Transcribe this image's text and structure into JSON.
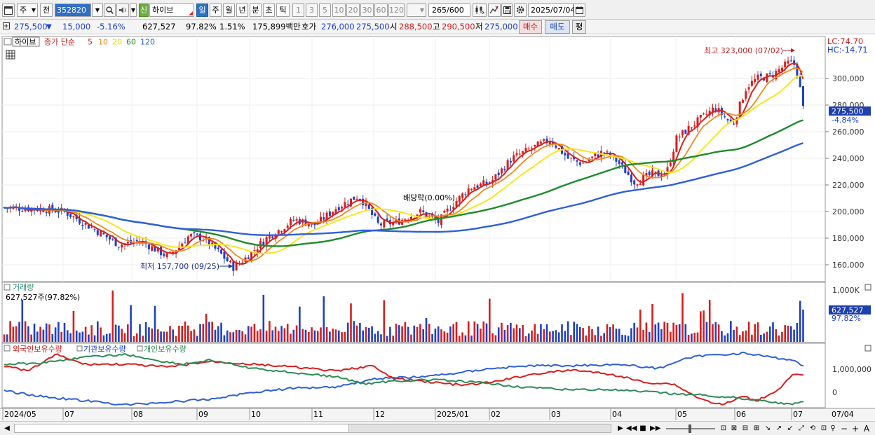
{
  "toolbar": {
    "market_label": "주",
    "prev_label": "전",
    "stock_code": "352820",
    "stock_name": "하이브",
    "new_badge": "신",
    "periods": [
      "일",
      "주",
      "월",
      "년",
      "분",
      "초",
      "틱"
    ],
    "active_period": "일",
    "intervals": [
      "1",
      "3",
      "5",
      "10",
      "20",
      "30",
      "60",
      "120"
    ],
    "bar_count": "265",
    "bar_total": "/600",
    "date": "2025/07/04"
  },
  "quote": {
    "price": "275,500",
    "change_arrow": "▼",
    "change": "15,000",
    "change_pct": "-5.16%",
    "volume": "627,527",
    "volume_ratio": "97.82%",
    "turnover_pct": "1.51%",
    "trade_value": "175,899백만",
    "bid_label": "호가",
    "bid": "276,000",
    "ask": "275,500",
    "open_label": "시",
    "open": "288,500",
    "high_label": "고",
    "high": "290,500",
    "low_label": "저",
    "low": "275,000",
    "buy_label": "매수",
    "sell_label": "매도",
    "eval_label": "평"
  },
  "price_panel": {
    "stock_tag": "하이브",
    "legend_label": "종가 단순",
    "ma_periods": [
      "5",
      "10",
      "20",
      "60",
      "120"
    ],
    "ma_colors": [
      "#d81e1e",
      "#ee8a1c",
      "#f7e81a",
      "#1f8b2b",
      "#2f5fd9"
    ],
    "y_ticks": [
      "300,000",
      "280,000",
      "260,000",
      "240,000",
      "220,000",
      "200,000",
      "180,000",
      "160,000"
    ],
    "lc_label": "LC:74.70",
    "hc_label": "HC:-14.71",
    "current_price_tag": "275,500",
    "current_pct_tag": "-4.84%",
    "max_annotation": "최고 323,000 (07/02)",
    "min_annotation": "최저 157,700 (09/25)",
    "dividend_annotation": "배당락(0.00%)",
    "up_color": "#d81e1e",
    "down_color": "#1f3fc8"
  },
  "volume_panel": {
    "title": "거래량",
    "current_label": "627,527주(97.82%)",
    "y_tick": "1,000K",
    "current_tag": "627,527",
    "pct_tag": "97.82%"
  },
  "holdings_panel": {
    "series_labels": [
      "외국인보유수량",
      "기관보유수량",
      "개인보유수량"
    ],
    "series_colors": [
      "#d81e1e",
      "#2f5fd9",
      "#2e8b57"
    ],
    "y_ticks": [
      "1,000,000",
      "0"
    ]
  },
  "x_axis": {
    "labels": [
      "2024/05",
      "07",
      "08",
      "09",
      "10",
      "11",
      "12",
      "2025/01",
      "02",
      "03",
      "04",
      "05",
      "06",
      "07"
    ],
    "right_label": "07/04"
  }
}
